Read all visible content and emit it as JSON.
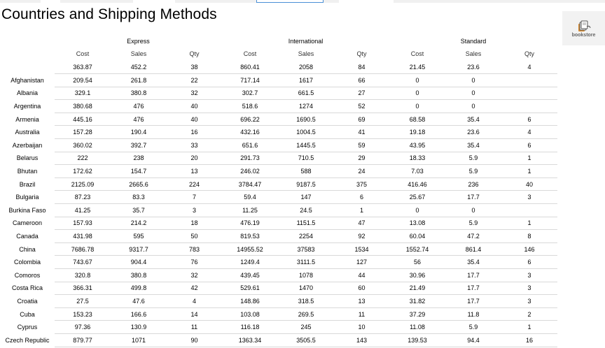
{
  "page": {
    "title": "Countries and Shipping Methods"
  },
  "logo": {
    "text": "bookstore",
    "icon": "bookstore-logo-icon"
  },
  "groups": [
    "Express",
    "International",
    "Standard"
  ],
  "columns": [
    "Cost",
    "Sales",
    "Qty",
    "Cost",
    "Sales",
    "Qty",
    "Cost",
    "Sales",
    "Qty"
  ],
  "total": [
    "363.87",
    "452.2",
    "38",
    "860.41",
    "2058",
    "84",
    "21.45",
    "23.6",
    "4"
  ],
  "rows": [
    {
      "country": "Afghanistan",
      "cells": [
        "209.54",
        "261.8",
        "22",
        "717.14",
        "1617",
        "66",
        "0",
        "0",
        ""
      ]
    },
    {
      "country": "Albania",
      "cells": [
        "329.1",
        "380.8",
        "32",
        "302.7",
        "661.5",
        "27",
        "0",
        "0",
        ""
      ]
    },
    {
      "country": "Argentina",
      "cells": [
        "380.68",
        "476",
        "40",
        "518.6",
        "1274",
        "52",
        "0",
        "0",
        ""
      ]
    },
    {
      "country": "Armenia",
      "cells": [
        "445.16",
        "476",
        "40",
        "696.22",
        "1690.5",
        "69",
        "68.58",
        "35.4",
        "6"
      ]
    },
    {
      "country": "Australia",
      "cells": [
        "157.28",
        "190.4",
        "16",
        "432.16",
        "1004.5",
        "41",
        "19.18",
        "23.6",
        "4"
      ]
    },
    {
      "country": "Azerbaijan",
      "cells": [
        "360.02",
        "392.7",
        "33",
        "651.6",
        "1445.5",
        "59",
        "43.95",
        "35.4",
        "6"
      ]
    },
    {
      "country": "Belarus",
      "cells": [
        "222",
        "238",
        "20",
        "291.73",
        "710.5",
        "29",
        "18.33",
        "5.9",
        "1"
      ]
    },
    {
      "country": "Bhutan",
      "cells": [
        "172.62",
        "154.7",
        "13",
        "246.02",
        "588",
        "24",
        "7.03",
        "5.9",
        "1"
      ]
    },
    {
      "country": "Brazil",
      "cells": [
        "2125.09",
        "2665.6",
        "224",
        "3784.47",
        "9187.5",
        "375",
        "416.46",
        "236",
        "40"
      ]
    },
    {
      "country": "Bulgaria",
      "cells": [
        "87.23",
        "83.3",
        "7",
        "59.4",
        "147",
        "6",
        "25.67",
        "17.7",
        "3"
      ]
    },
    {
      "country": "Burkina Faso",
      "cells": [
        "41.25",
        "35.7",
        "3",
        "11.25",
        "24.5",
        "1",
        "0",
        "0",
        ""
      ]
    },
    {
      "country": "Cameroon",
      "cells": [
        "157.93",
        "214.2",
        "18",
        "476.19",
        "1151.5",
        "47",
        "13.08",
        "5.9",
        "1"
      ]
    },
    {
      "country": "Canada",
      "cells": [
        "431.98",
        "595",
        "50",
        "819.53",
        "2254",
        "92",
        "60.04",
        "47.2",
        "8"
      ]
    },
    {
      "country": "China",
      "cells": [
        "7686.78",
        "9317.7",
        "783",
        "14955.52",
        "37583",
        "1534",
        "1552.74",
        "861.4",
        "146"
      ]
    },
    {
      "country": "Colombia",
      "cells": [
        "743.67",
        "904.4",
        "76",
        "1249.4",
        "3111.5",
        "127",
        "56",
        "35.4",
        "6"
      ]
    },
    {
      "country": "Comoros",
      "cells": [
        "320.8",
        "380.8",
        "32",
        "439.45",
        "1078",
        "44",
        "30.96",
        "17.7",
        "3"
      ]
    },
    {
      "country": "Costa Rica",
      "cells": [
        "366.31",
        "499.8",
        "42",
        "529.61",
        "1470",
        "60",
        "21.49",
        "17.7",
        "3"
      ]
    },
    {
      "country": "Croatia",
      "cells": [
        "27.5",
        "47.6",
        "4",
        "148.86",
        "318.5",
        "13",
        "31.82",
        "17.7",
        "3"
      ]
    },
    {
      "country": "Cuba",
      "cells": [
        "153.23",
        "166.6",
        "14",
        "103.08",
        "269.5",
        "11",
        "37.29",
        "11.8",
        "2"
      ]
    },
    {
      "country": "Cyprus",
      "cells": [
        "97.36",
        "130.9",
        "11",
        "116.18",
        "245",
        "10",
        "11.08",
        "5.9",
        "1"
      ]
    },
    {
      "country": "Czech Republic",
      "cells": [
        "879.77",
        "1071",
        "90",
        "1363.34",
        "3505.5",
        "143",
        "139.53",
        "94.4",
        "16"
      ]
    }
  ]
}
